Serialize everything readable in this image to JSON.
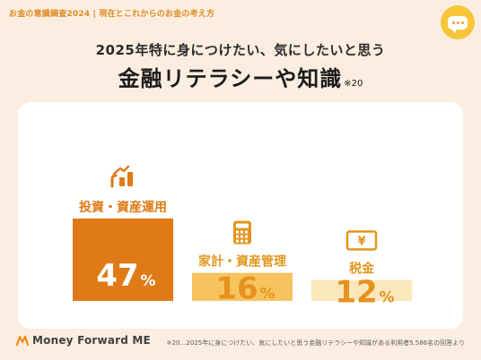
{
  "header": {
    "caption": "お金の意識調査2024 | 現在とこれからのお金の考え方"
  },
  "chat": {
    "icon": "chat-bubble-icon"
  },
  "subtitle": "2025年特に身につけたい、気にしたいと思う",
  "title": "金融リテラシーや知識",
  "title_note": "※20",
  "footer": {
    "logo_icon": "money-forward-logo-icon",
    "logo_text": "Money Forward ME",
    "footnote": "※20…2025年に身につけたい、気にしたいと思う金融リテラシーや知識がある利用者5,586名の回答より"
  },
  "colors": {
    "background": "#fbeee0",
    "accent": "#e08a23",
    "bar_1": "#e07a16",
    "bar_2": "#f7c35e",
    "bar_3": "#fbe7bb",
    "label_1": "#e07a16",
    "label_2": "#e3961f",
    "label_3": "#e3961f"
  },
  "chart_data": {
    "type": "bar",
    "title": "金融リテラシーや知識",
    "subtitle": "2025年特に身につけたい、気にしたいと思う",
    "categories": [
      "投資・資産運用",
      "家計・資産管理",
      "税金"
    ],
    "values": [
      47,
      16,
      12
    ],
    "unit": "%",
    "category_icons": [
      "chart-growth-icon",
      "calculator-icon",
      "yen-bill-icon"
    ],
    "value_labels": [
      "47",
      "16",
      "12"
    ],
    "grid": false,
    "legend": "none"
  }
}
